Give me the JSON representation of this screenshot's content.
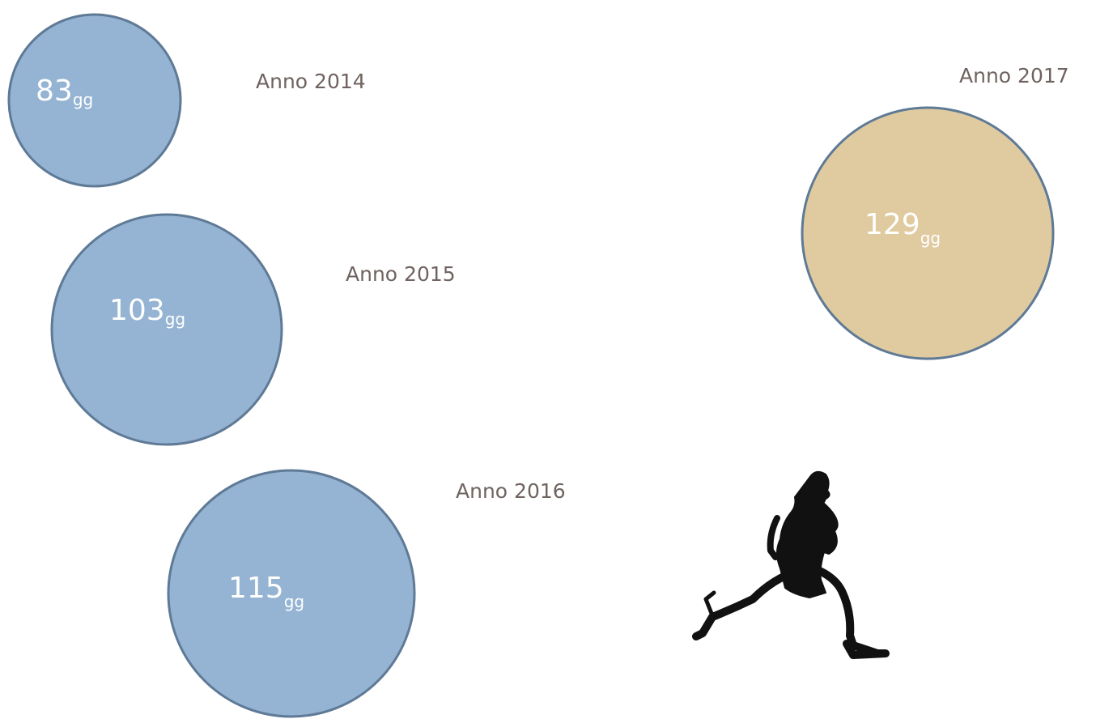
{
  "items": [
    {
      "label": "Anno 2014",
      "value": 83,
      "unit": "gg"
    },
    {
      "label": "Anno 2015",
      "value": 103,
      "unit": "gg"
    },
    {
      "label": "Anno 2016",
      "value": 115,
      "unit": "gg"
    },
    {
      "label": "Anno 2017",
      "value": 129,
      "unit": "gg"
    }
  ]
}
